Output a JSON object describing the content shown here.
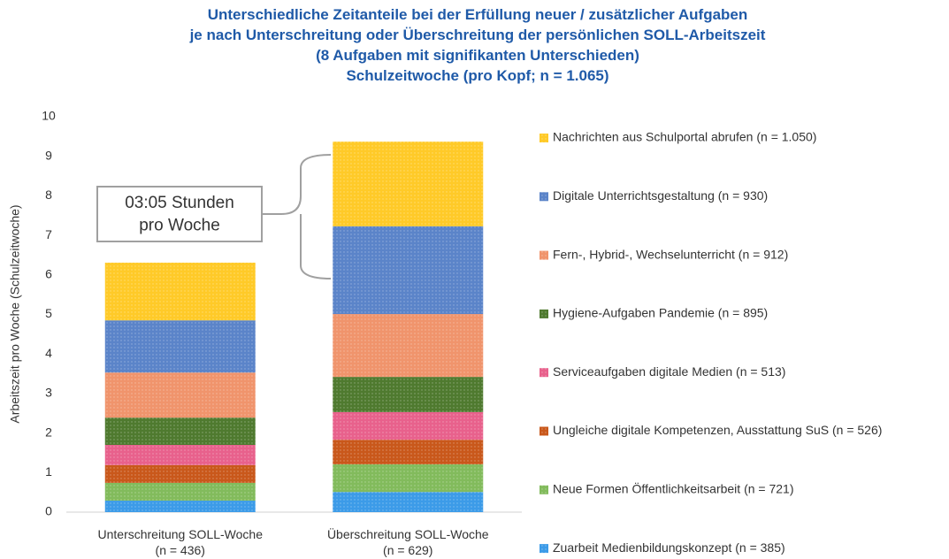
{
  "chart_data": {
    "type": "stacked_bar",
    "title": "Unterschiedliche Zeitanteile bei der Erfüllung neuer / zusätzlicher Aufgaben\nje nach Unterschreitung oder Überschreitung der persönlichen SOLL-Arbeitszeit\n(8 Aufgaben mit signifikanten Unterschieden)\nSchulzeitwoche (pro Kopf; n = 1.065)",
    "y_label": "Arbeitszeit pro Woche (Schulzeitwoche)",
    "annotation": "03:05 Stunden\npro Woche",
    "categories": [
      "Unterschreitung SOLL-Woche\n(n = 436)",
      "Überschreitung SOLL-Woche\n(n = 629)"
    ],
    "series": [
      {
        "name": "Zuarbeit Medienbildungskonzept (n = 385)",
        "color": "#3c9be8",
        "values": [
          0.29,
          0.51
        ]
      },
      {
        "name": "Neue Formen Öffentlichkeitsarbeit (n = 721)",
        "color": "#82bb5c",
        "values": [
          0.45,
          0.7
        ]
      },
      {
        "name": "Ungleiche digitale Kompetenzen, Ausstattung SuS (n = 526)",
        "color": "#c9581b",
        "values": [
          0.45,
          0.62
        ]
      },
      {
        "name": "Serviceaufgaben digitale Medien (n = 513)",
        "color": "#e8618c",
        "values": [
          0.51,
          0.7
        ]
      },
      {
        "name": "Hygiene-Aufgaben Pandemie (n = 895)",
        "color": "#4f7a2f",
        "values": [
          0.69,
          0.89
        ]
      },
      {
        "name": "Fern-, Hybrid-, Wechselunterricht (n = 912)",
        "color": "#f0946c",
        "values": [
          1.14,
          1.59
        ]
      },
      {
        "name": "Digitale Unterrichtsgestaltung (n = 930)",
        "color": "#5b84c9",
        "values": [
          1.32,
          2.22
        ]
      },
      {
        "name": "Nachrichten aus Schulportal abrufen (n = 1.050)",
        "color": "#ffca28",
        "values": [
          1.46,
          2.14
        ]
      }
    ],
    "ylim": [
      0,
      10
    ],
    "yticks": [
      0,
      1,
      2,
      3,
      4,
      5,
      6,
      7,
      8,
      9,
      10
    ],
    "grid": false,
    "legend": "right"
  }
}
